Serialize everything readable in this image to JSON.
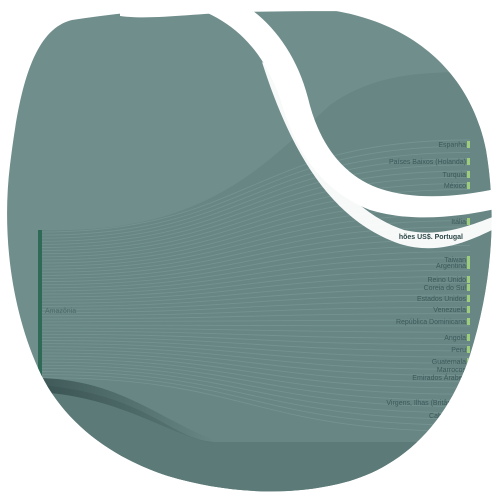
{
  "chart_data": {
    "type": "sankey",
    "title": "",
    "source": {
      "name": "Amazônia"
    },
    "highlight": {
      "name": "Milhões US$. Portugal",
      "visible_text": "hões US$. Portugal"
    },
    "targets": [
      {
        "name": "Espanha"
      },
      {
        "name": "Países Baixos (Holanda)"
      },
      {
        "name": "Turquia"
      },
      {
        "name": "México"
      },
      {
        "name": "Itália"
      },
      {
        "name": "Taiwan"
      },
      {
        "name": "Argentina"
      },
      {
        "name": "Reino Unido"
      },
      {
        "name": "Coreia do Sul"
      },
      {
        "name": "Estados Unidos"
      },
      {
        "name": "Venezuela"
      },
      {
        "name": "República Dominicana"
      },
      {
        "name": "Angola"
      },
      {
        "name": "Peru"
      },
      {
        "name": "Guatemala"
      },
      {
        "name": "Marrocos"
      },
      {
        "name": "Emirados Árabes"
      },
      {
        "name": "Virgens, Ilhas (Britânicas)"
      },
      {
        "name": "Cabo Verde"
      },
      {
        "name": "Rússia"
      }
    ],
    "colors": {
      "blob": "#6b8a88",
      "band": "#5b7876",
      "source_node": "#2f6a57",
      "target_node": "#9ccd7a"
    }
  }
}
